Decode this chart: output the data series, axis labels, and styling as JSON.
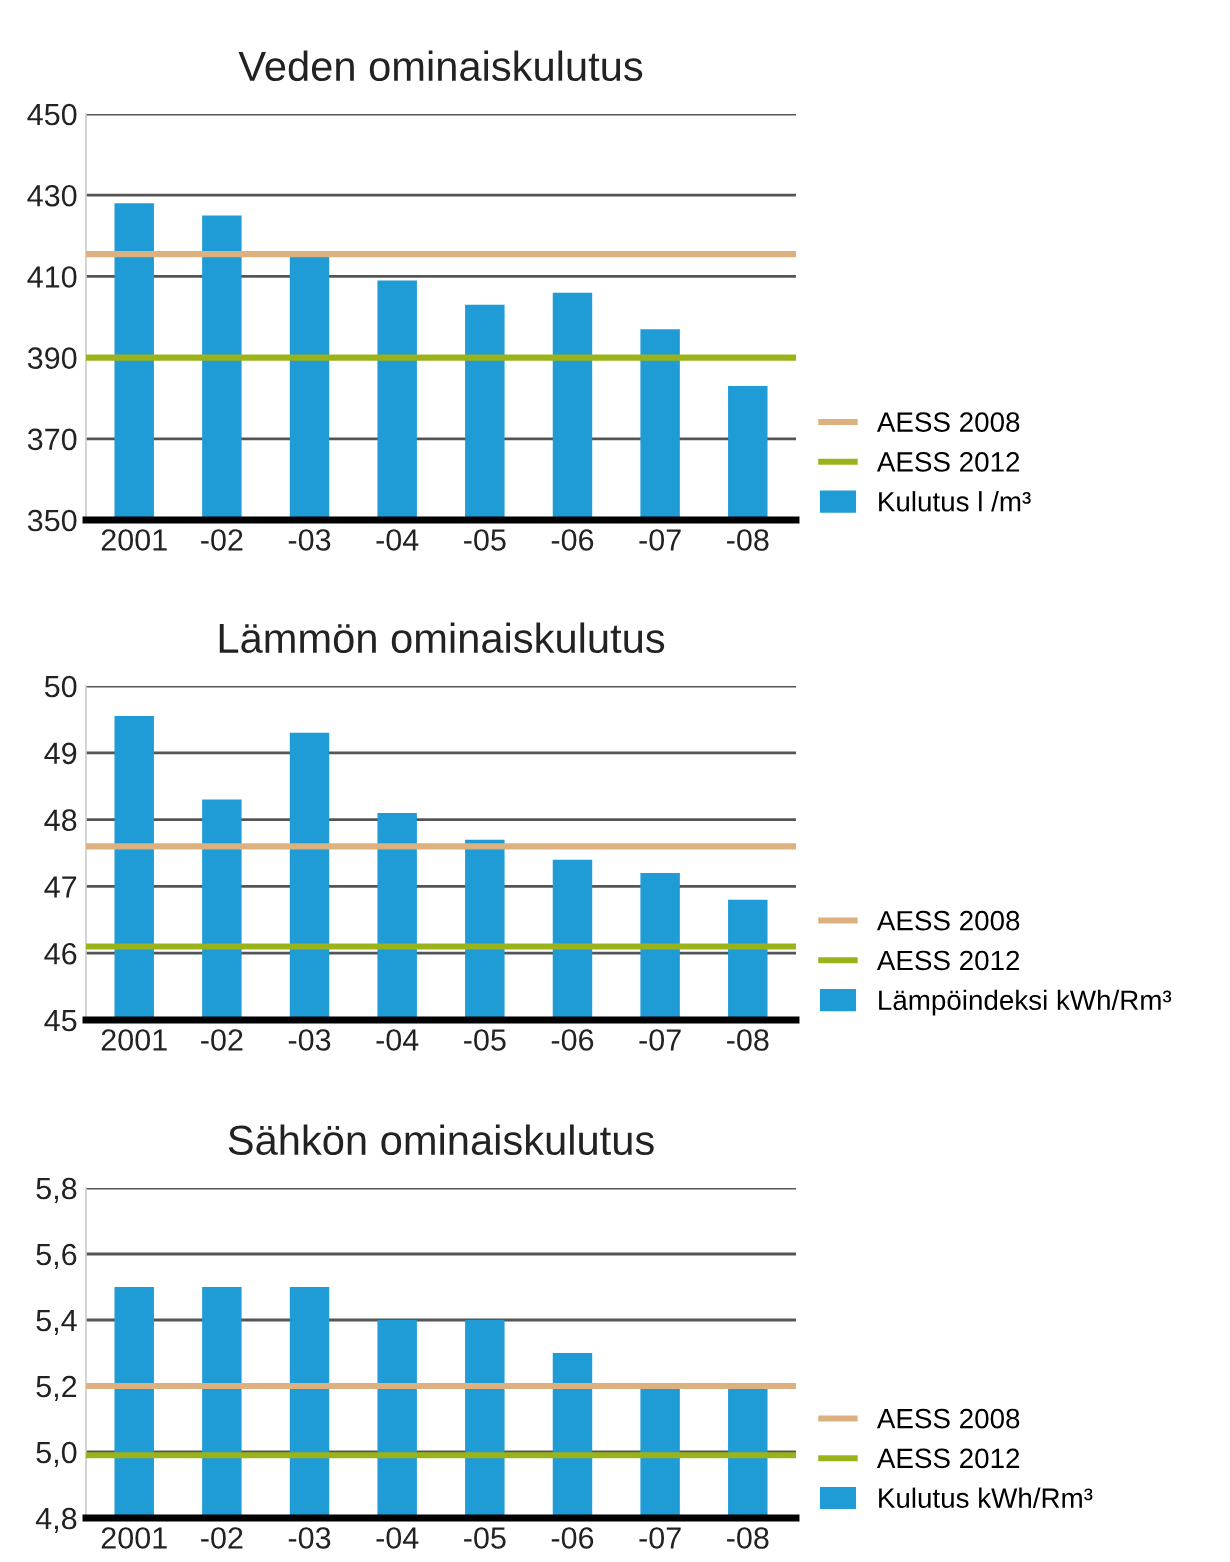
{
  "chart_data": [
    {
      "type": "bar",
      "title": "Veden ominaiskulutus",
      "categories": [
        "2001",
        "-02",
        "-03",
        "-04",
        "-05",
        "-06",
        "-07",
        "-08"
      ],
      "series": [
        {
          "name": "Kulutus l /m³",
          "color": "#1f9bd5",
          "values": [
            428,
            425,
            415,
            409,
            403,
            406,
            397,
            383
          ]
        }
      ],
      "ylim": [
        350,
        450
      ],
      "yticks": [
        350,
        370,
        390,
        410,
        430,
        450
      ],
      "grid": "y",
      "legend": "right",
      "ref_lines": [
        {
          "axis": "y",
          "value": 415.5,
          "label": "AESS 2008",
          "color": "#dcb07f"
        },
        {
          "axis": "y",
          "value": 390,
          "label": "AESS 2012",
          "color": "#9bb31a"
        }
      ]
    },
    {
      "type": "bar",
      "title": "Lämmön ominaiskulutus",
      "categories": [
        "2001",
        "-02",
        "-03",
        "-04",
        "-05",
        "-06",
        "-07",
        "-08"
      ],
      "series": [
        {
          "name": "Lämpöindeksi kWh/Rm³",
          "color": "#1f9bd5",
          "values": [
            49.55,
            48.3,
            49.3,
            48.1,
            47.7,
            47.4,
            47.2,
            46.8
          ]
        }
      ],
      "ylim": [
        45,
        50
      ],
      "yticks": [
        45,
        46,
        47,
        48,
        49,
        50
      ],
      "grid": "y",
      "legend": "right",
      "ref_lines": [
        {
          "axis": "y",
          "value": 47.6,
          "label": "AESS 2008",
          "color": "#dcb07f"
        },
        {
          "axis": "y",
          "value": 46.1,
          "label": "AESS 2012",
          "color": "#9bb31a"
        }
      ]
    },
    {
      "type": "bar",
      "title": "Sähkön ominaiskulutus",
      "categories": [
        "2001",
        "-02",
        "-03",
        "-04",
        "-05",
        "-06",
        "-07",
        "-08"
      ],
      "series": [
        {
          "name": "Kulutus kWh/Rm³",
          "color": "#1f9bd5",
          "values": [
            5.5,
            5.5,
            5.5,
            5.4,
            5.4,
            5.3,
            5.2,
            5.2
          ]
        }
      ],
      "ylim": [
        4.8,
        5.8
      ],
      "yticks": [
        {
          "value": 4.8,
          "label": "4,8"
        },
        {
          "value": 5.0,
          "label": "5,0"
        },
        {
          "value": 5.2,
          "label": "5,2"
        },
        {
          "value": 5.4,
          "label": "5,4"
        },
        {
          "value": 5.6,
          "label": "5,6"
        },
        {
          "value": 5.8,
          "label": "5,8"
        }
      ],
      "grid": "y",
      "legend": "right",
      "ref_lines": [
        {
          "axis": "y",
          "value": 5.2,
          "label": "AESS 2008",
          "color": "#dcb07f"
        },
        {
          "axis": "y",
          "value": 4.99,
          "label": "AESS 2012",
          "color": "#9bb31a"
        }
      ]
    }
  ]
}
